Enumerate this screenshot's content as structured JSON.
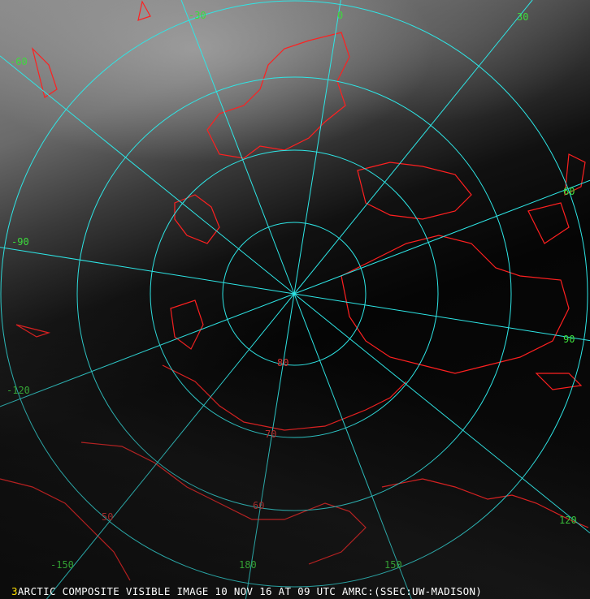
{
  "image": {
    "frame_number": "3",
    "caption": "ARCTIC COMPOSITE VISIBLE IMAGE 10 NOV 16 AT 09 UTC AMRC:(SSEC:UW-MADISON)"
  },
  "graticule": {
    "line_color": "#2ee6e6",
    "coastline_color": "#ff2020",
    "longitude_label_color": "#3cdc3c",
    "latitude_label_color": "#e03030",
    "longitudes": [
      "0",
      "30",
      "60",
      "90",
      "120",
      "150",
      "180",
      "-150",
      "-120",
      "-90",
      "-60",
      "-30"
    ],
    "latitudes": [
      "80",
      "70",
      "60",
      "50"
    ]
  }
}
